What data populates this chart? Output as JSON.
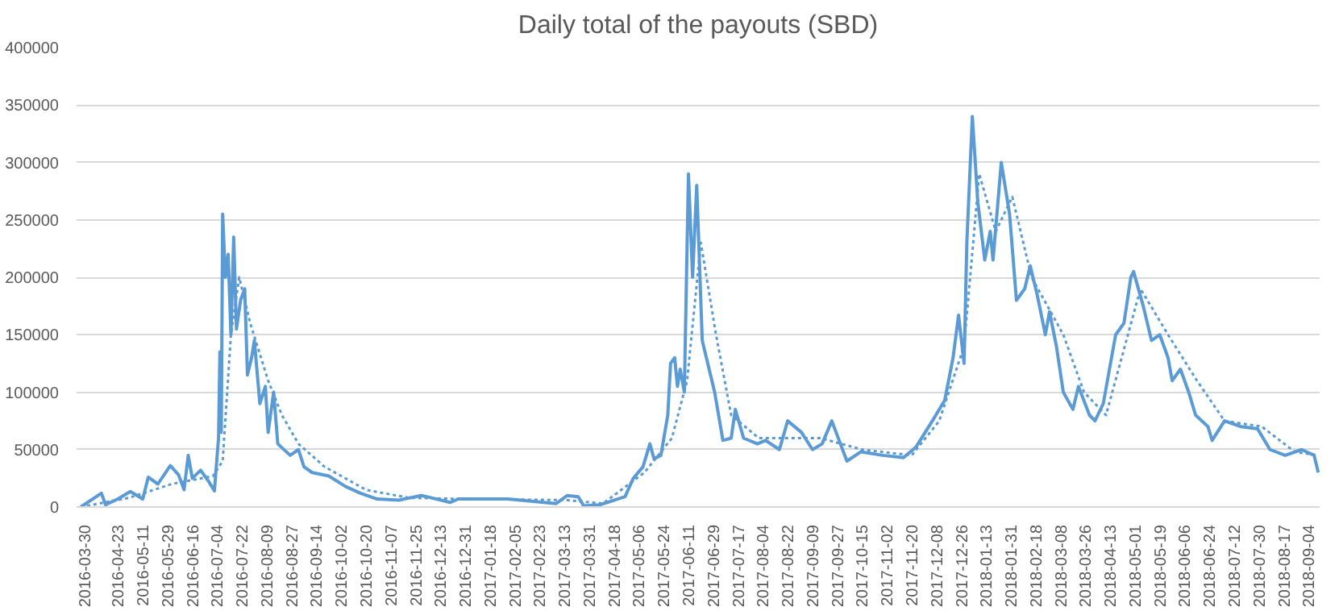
{
  "chart_data": {
    "type": "line",
    "title": "Daily total of the payouts (SBD)",
    "xlim": [
      "2016-03-24",
      "2018-09-12"
    ],
    "xticks": [
      "2016-03-30",
      "2016-04-23",
      "2016-05-11",
      "2016-05-29",
      "2016-06-16",
      "2016-07-04",
      "2016-07-22",
      "2016-08-09",
      "2016-08-27",
      "2016-09-14",
      "2016-10-02",
      "2016-10-20",
      "2016-11-07",
      "2016-11-25",
      "2016-12-13",
      "2016-12-31",
      "2017-01-18",
      "2017-02-05",
      "2017-02-23",
      "2017-03-13",
      "2017-03-31",
      "2017-04-18",
      "2017-05-06",
      "2017-05-24",
      "2017-06-11",
      "2017-06-29",
      "2017-07-17",
      "2017-08-04",
      "2017-08-22",
      "2017-09-09",
      "2017-09-27",
      "2017-10-15",
      "2017-11-02",
      "2017-11-20",
      "2017-12-08",
      "2017-12-26",
      "2018-01-13",
      "2018-01-31",
      "2018-02-18",
      "2018-03-08",
      "2018-03-26",
      "2018-04-13",
      "2018-05-01",
      "2018-05-19",
      "2018-06-06",
      "2018-06-24",
      "2018-07-12",
      "2018-07-30",
      "2018-08-17",
      "2018-09-04"
    ],
    "ylim": [
      0,
      400000
    ],
    "yticks": [
      0,
      50000,
      100000,
      150000,
      200000,
      250000,
      300000,
      350000,
      400000
    ],
    "grid": "y",
    "series": [
      {
        "color": "#5b9bd5",
        "line_style": "solid",
        "x": [
          "2016-03-27",
          "2016-04-11",
          "2016-04-14",
          "2016-04-23",
          "2016-05-02",
          "2016-05-11",
          "2016-05-15",
          "2016-05-22",
          "2016-05-31",
          "2016-06-06",
          "2016-06-10",
          "2016-06-13",
          "2016-06-16",
          "2016-06-22",
          "2016-06-28",
          "2016-07-02",
          "2016-07-05",
          "2016-07-06",
          "2016-07-07",
          "2016-07-08",
          "2016-07-10",
          "2016-07-12",
          "2016-07-14",
          "2016-07-16",
          "2016-07-18",
          "2016-07-21",
          "2016-07-24",
          "2016-07-26",
          "2016-07-29",
          "2016-07-31",
          "2016-08-04",
          "2016-08-08",
          "2016-08-10",
          "2016-08-14",
          "2016-08-17",
          "2016-08-26",
          "2016-09-01",
          "2016-09-05",
          "2016-09-11",
          "2016-09-23",
          "2016-10-05",
          "2016-10-16",
          "2016-10-28",
          "2016-11-13",
          "2016-11-29",
          "2016-12-03",
          "2016-12-20",
          "2016-12-26",
          "2017-01-31",
          "2017-03-07",
          "2017-03-15",
          "2017-03-23",
          "2017-03-27",
          "2017-04-08",
          "2017-04-26",
          "2017-05-02",
          "2017-05-09",
          "2017-05-14",
          "2017-05-17",
          "2017-05-22",
          "2017-05-27",
          "2017-05-29",
          "2017-06-01",
          "2017-06-03",
          "2017-06-05",
          "2017-06-08",
          "2017-06-11",
          "2017-06-14",
          "2017-06-17",
          "2017-06-21",
          "2017-06-24",
          "2017-06-30",
          "2017-07-06",
          "2017-07-12",
          "2017-07-15",
          "2017-07-21",
          "2017-07-31",
          "2017-08-06",
          "2017-08-16",
          "2017-08-22",
          "2017-09-01",
          "2017-09-09",
          "2017-09-16",
          "2017-09-23",
          "2017-10-04",
          "2017-10-14",
          "2017-10-30",
          "2017-11-14",
          "2017-11-23",
          "2017-12-05",
          "2017-12-14",
          "2017-12-20",
          "2017-12-24",
          "2017-12-28",
          "2017-12-30",
          "2018-01-03",
          "2018-01-07",
          "2018-01-12",
          "2018-01-16",
          "2018-01-18",
          "2018-01-24",
          "2018-01-30",
          "2018-02-04",
          "2018-02-10",
          "2018-02-14",
          "2018-02-19",
          "2018-02-25",
          "2018-02-28",
          "2018-03-05",
          "2018-03-10",
          "2018-03-17",
          "2018-03-21",
          "2018-03-29",
          "2018-04-02",
          "2018-04-08",
          "2018-04-17",
          "2018-04-23",
          "2018-04-28",
          "2018-04-30",
          "2018-05-07",
          "2018-05-13",
          "2018-05-19",
          "2018-05-25",
          "2018-05-28",
          "2018-06-03",
          "2018-06-09",
          "2018-06-14",
          "2018-06-23",
          "2018-06-26",
          "2018-07-05",
          "2018-07-17",
          "2018-07-29",
          "2018-08-07",
          "2018-08-18",
          "2018-08-30",
          "2018-09-08",
          "2018-09-11"
        ],
        "values": [
          0,
          12000,
          2000,
          7000,
          13500,
          7000,
          26000,
          20000,
          36000,
          28000,
          15000,
          45000,
          25000,
          32000,
          22000,
          14000,
          60000,
          135000,
          65000,
          255000,
          200000,
          220000,
          150000,
          235000,
          155000,
          180000,
          190000,
          115000,
          130000,
          145000,
          90000,
          105000,
          65000,
          100000,
          55000,
          45000,
          50000,
          35000,
          30000,
          27000,
          18000,
          12000,
          7000,
          6000,
          10000,
          9000,
          4000,
          7000,
          7000,
          3000,
          10000,
          9000,
          1000,
          2000,
          9000,
          25000,
          35000,
          55000,
          42000,
          45000,
          80000,
          125000,
          130000,
          105000,
          120000,
          100000,
          290000,
          200000,
          280000,
          145000,
          130000,
          100000,
          58000,
          60000,
          85000,
          60000,
          55000,
          58000,
          50000,
          75000,
          65000,
          50000,
          55000,
          75000,
          40000,
          48000,
          45000,
          43000,
          52000,
          75000,
          93000,
          130000,
          167000,
          125000,
          230000,
          340000,
          265000,
          215000,
          240000,
          215000,
          300000,
          255000,
          180000,
          190000,
          210000,
          185000,
          150000,
          170000,
          140000,
          100000,
          85000,
          105000,
          80000,
          75000,
          90000,
          150000,
          160000,
          200000,
          205000,
          175000,
          145000,
          150000,
          130000,
          110000,
          120000,
          100000,
          80000,
          70000,
          58000,
          75000,
          70000,
          68000,
          50000,
          45000,
          50000,
          45000,
          30000
        ]
      },
      {
        "color": "#5b9bd5",
        "line_style": "dotted",
        "x": [
          "2016-03-27",
          "2016-05-01",
          "2016-06-01",
          "2016-07-01",
          "2016-07-08",
          "2016-07-14",
          "2016-07-20",
          "2016-07-28",
          "2016-08-10",
          "2016-08-20",
          "2016-09-01",
          "2016-09-20",
          "2016-10-20",
          "2016-11-20",
          "2017-01-01",
          "2017-03-15",
          "2017-04-10",
          "2017-05-10",
          "2017-05-30",
          "2017-06-10",
          "2017-06-20",
          "2017-07-01",
          "2017-07-12",
          "2017-08-01",
          "2017-09-15",
          "2017-10-15",
          "2017-11-20",
          "2017-12-10",
          "2017-12-28",
          "2018-01-08",
          "2018-01-20",
          "2018-02-01",
          "2018-02-15",
          "2018-03-10",
          "2018-03-25",
          "2018-04-10",
          "2018-05-05",
          "2018-05-25",
          "2018-06-15",
          "2018-07-05",
          "2018-08-01",
          "2018-08-25",
          "2018-09-11"
        ],
        "values": [
          0,
          8000,
          20000,
          27000,
          40000,
          150000,
          200000,
          160000,
          110000,
          80000,
          55000,
          35000,
          15000,
          8000,
          7000,
          6000,
          3000,
          30000,
          60000,
          110000,
          230000,
          150000,
          80000,
          60000,
          60000,
          50000,
          45000,
          75000,
          140000,
          290000,
          240000,
          270000,
          200000,
          150000,
          100000,
          80000,
          190000,
          150000,
          110000,
          75000,
          70000,
          48000,
          45000
        ]
      }
    ]
  }
}
